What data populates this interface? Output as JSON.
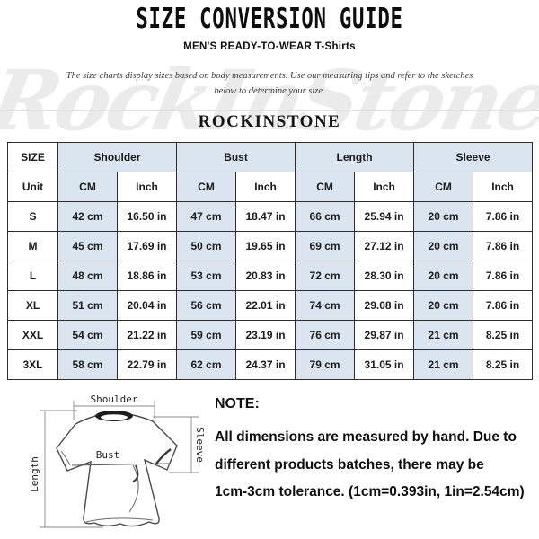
{
  "title": "SIZE CONVERSION GUIDE",
  "subtitle": "MEN'S READY-TO-WEAR T-Shirts",
  "description": {
    "line1": "The size charts display sizes based on body measurements. Use our measuring tips and refer to the sketches",
    "line2": "below to determine your size."
  },
  "brand": "ROCKINSTONE",
  "watermark": "RockInStone",
  "colors": {
    "cell_fill_blue": "#dbe5f0",
    "table_border": "#2d2d2d",
    "watermark_gray": "#e7e7e7"
  },
  "table": {
    "size_header": "SIZE",
    "unit_label": "Unit",
    "cm_label": "CM",
    "inch_label": "Inch",
    "groups": [
      {
        "label": "Shoulder"
      },
      {
        "label": "Bust"
      },
      {
        "label": "Length"
      },
      {
        "label": "Sleeve"
      }
    ],
    "rows": [
      {
        "size": "S",
        "cells": [
          "42 cm",
          "16.50 in",
          "47 cm",
          "18.47 in",
          "66 cm",
          "25.94 in",
          "20 cm",
          "7.86 in"
        ]
      },
      {
        "size": "M",
        "cells": [
          "45 cm",
          "17.69 in",
          "50 cm",
          "19.65 in",
          "69 cm",
          "27.12 in",
          "20 cm",
          "7.86 in"
        ]
      },
      {
        "size": "L",
        "cells": [
          "48 cm",
          "18.86 in",
          "53 cm",
          "20.83 in",
          "72 cm",
          "28.30 in",
          "20 cm",
          "7.86 in"
        ]
      },
      {
        "size": "XL",
        "cells": [
          "51 cm",
          "20.04 in",
          "56 cm",
          "22.01 in",
          "74 cm",
          "29.08 in",
          "20 cm",
          "7.86 in"
        ]
      },
      {
        "size": "XXL",
        "cells": [
          "54 cm",
          "21.22 in",
          "59 cm",
          "23.19 in",
          "76 cm",
          "29.87 in",
          "21 cm",
          "8.25 in"
        ]
      },
      {
        "size": "3XL",
        "cells": [
          "58 cm",
          "22.79 in",
          "62 cm",
          "24.37 in",
          "79 cm",
          "31.05 in",
          "21 cm",
          "8.25 in"
        ]
      }
    ]
  },
  "diagram": {
    "shoulder_label": "Shoulder",
    "bust_label": "Bust",
    "length_label": "Length",
    "sleeve_label": "Sleeve"
  },
  "note": {
    "heading": "NOTE:",
    "line1": "All dimensions are measured by hand. Due to",
    "line2": "different products batches, there may be",
    "line3": "1cm-3cm tolerance. (1cm=0.393in, 1in=2.54cm)"
  }
}
